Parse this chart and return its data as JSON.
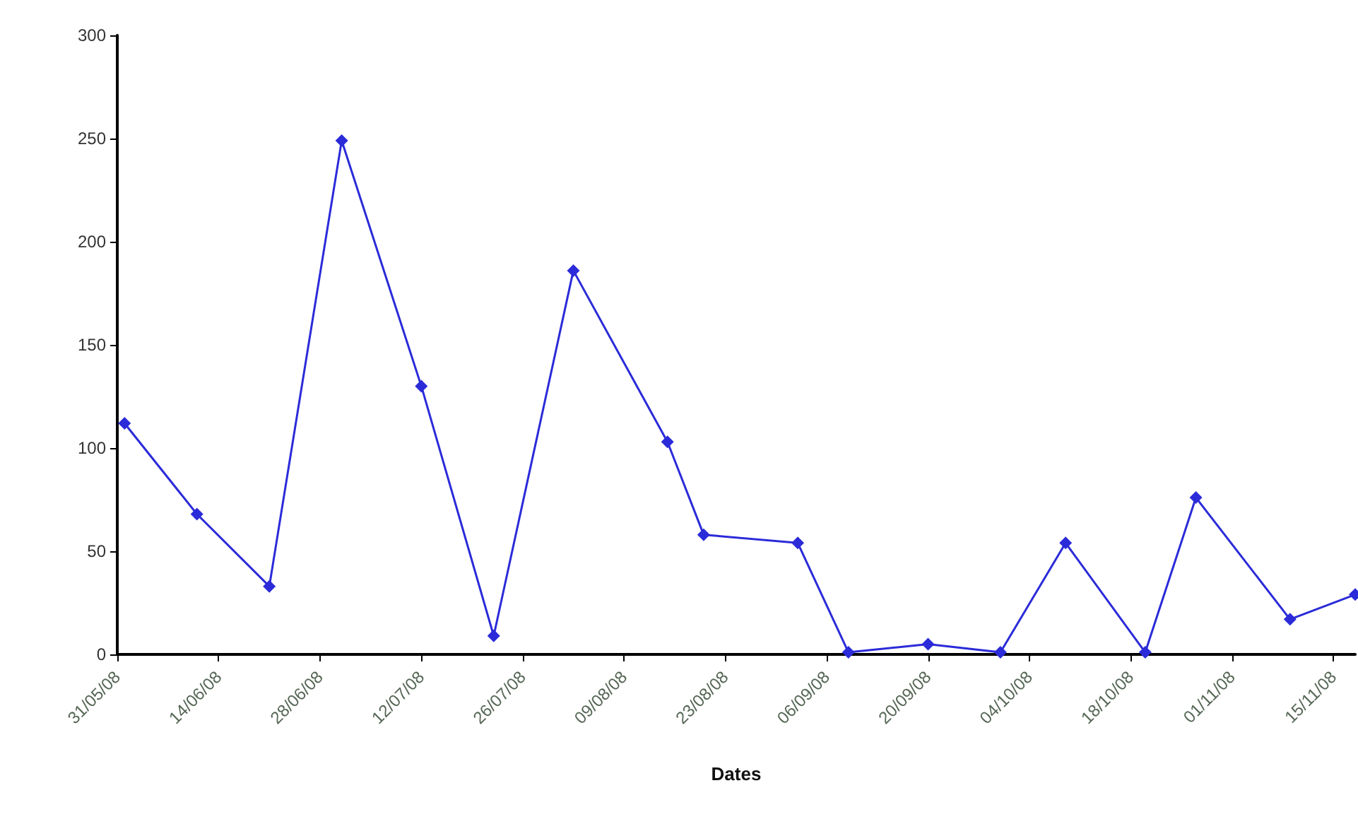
{
  "chart_data": {
    "type": "line",
    "xlabel": "Dates",
    "x": [
      "2008-06-01",
      "2008-06-11",
      "2008-06-21",
      "2008-07-01",
      "2008-07-12",
      "2008-07-22",
      "2008-08-02",
      "2008-08-15",
      "2008-08-20",
      "2008-09-02",
      "2008-09-09",
      "2008-09-20",
      "2008-09-30",
      "2008-10-09",
      "2008-10-20",
      "2008-10-27",
      "2008-11-09",
      "2008-11-18"
    ],
    "series": [
      {
        "color": "#2b2bd9",
        "values": [
          112,
          68,
          33,
          249,
          130,
          9,
          186,
          103,
          58,
          54,
          1,
          5,
          1,
          54,
          1,
          76,
          17,
          29
        ]
      }
    ],
    "xlim": [
      "2008-05-31",
      "2008-11-18"
    ],
    "xticks": [
      {
        "value": "2008-05-31",
        "label": "31/05/08"
      },
      {
        "value": "2008-06-14",
        "label": "14/06/08"
      },
      {
        "value": "2008-06-28",
        "label": "28/06/08"
      },
      {
        "value": "2008-07-12",
        "label": "12/07/08"
      },
      {
        "value": "2008-07-26",
        "label": "26/07/08"
      },
      {
        "value": "2008-08-09",
        "label": "09/08/08"
      },
      {
        "value": "2008-08-23",
        "label": "23/08/08"
      },
      {
        "value": "2008-09-06",
        "label": "06/09/08"
      },
      {
        "value": "2008-09-20",
        "label": "20/09/08"
      },
      {
        "value": "2008-10-04",
        "label": "04/10/08"
      },
      {
        "value": "2008-10-18",
        "label": "18/10/08"
      },
      {
        "value": "2008-11-01",
        "label": "01/11/08"
      },
      {
        "value": "2008-11-15",
        "label": "15/11/08"
      }
    ],
    "ylim": [
      0,
      300
    ],
    "yticks": [
      0,
      50,
      100,
      150,
      200,
      250,
      300
    ],
    "grid": false,
    "marker": "diamond",
    "line_style": "solid"
  }
}
